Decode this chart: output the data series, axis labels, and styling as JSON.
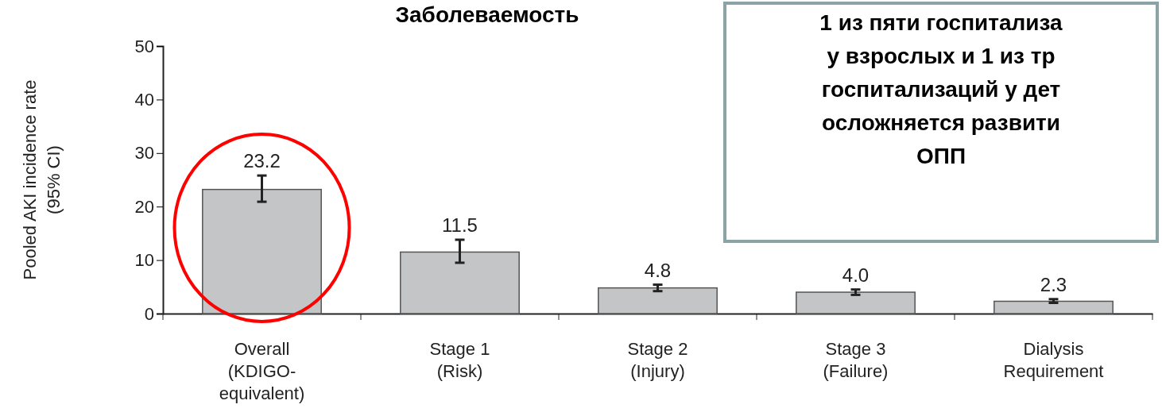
{
  "chart_data": {
    "type": "bar",
    "title": "Заболеваемость",
    "ylabel": "Pooled AKI incidence rate\n(95% CI)",
    "categories": [
      "Overall\n(KDIGO-\nequivalent)",
      "Stage 1\n(Risk)",
      "Stage 2\n(Injury)",
      "Stage 3\n(Failure)",
      "Dialysis\nRequirement"
    ],
    "values": [
      23.2,
      11.5,
      4.8,
      4.0,
      2.3
    ],
    "errors": [
      [
        20.9,
        25.8
      ],
      [
        9.5,
        13.8
      ],
      [
        4.2,
        5.4
      ],
      [
        3.5,
        4.5
      ],
      [
        2.0,
        2.7
      ]
    ],
    "color": "#c4c5c7",
    "value_labels": [
      "23.2",
      "11.5",
      "4.8",
      "4.0",
      "2.3"
    ],
    "ylim": [
      0,
      50
    ],
    "yticks": [
      0,
      10,
      20,
      30,
      40,
      50
    ],
    "annotations": [
      "1 из пяти госпитализа\nу взрослых и 1 из тр\nгоспитализаций у дет\nосложняется развити\nОПП"
    ]
  }
}
